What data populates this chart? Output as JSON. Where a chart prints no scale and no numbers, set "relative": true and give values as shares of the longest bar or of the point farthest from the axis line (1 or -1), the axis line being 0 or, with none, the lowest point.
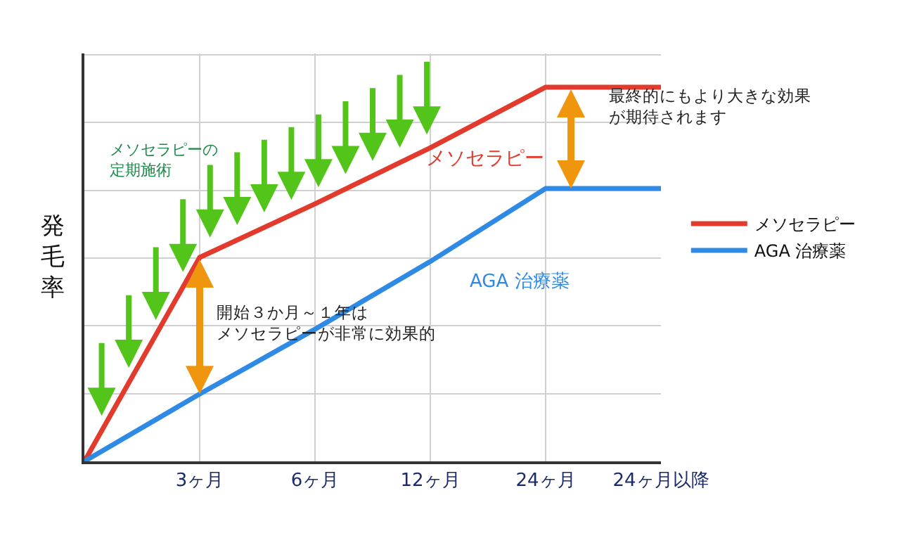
{
  "chart_data": {
    "type": "line",
    "relative": true,
    "ylabel": "発毛率",
    "categories": [
      null,
      "3ヶ月",
      "6ヶ月",
      "12ヶ月",
      "24ヶ月",
      "24ヶ月以降"
    ],
    "series": [
      {
        "name": "メソセラピー",
        "color": "#e23a2c",
        "values": [
          0,
          0.545,
          0.688,
          0.838,
          1,
          1
        ]
      },
      {
        "name": "AGA 治療薬",
        "color": "#2f8ae6",
        "values": [
          0,
          0.18,
          0.353,
          0.534,
          0.729,
          0.729
        ]
      }
    ],
    "annotations": [
      "メソセラピーの定期施術",
      "メソセラピー",
      "AGA 治療薬",
      "開始３か月～１年はメソセラピーが非常に効果的",
      "最終的にもより大きな効果が期待されます"
    ],
    "grid": true,
    "legend": "right",
    "marker": "none",
    "line_style": "solid"
  }
}
